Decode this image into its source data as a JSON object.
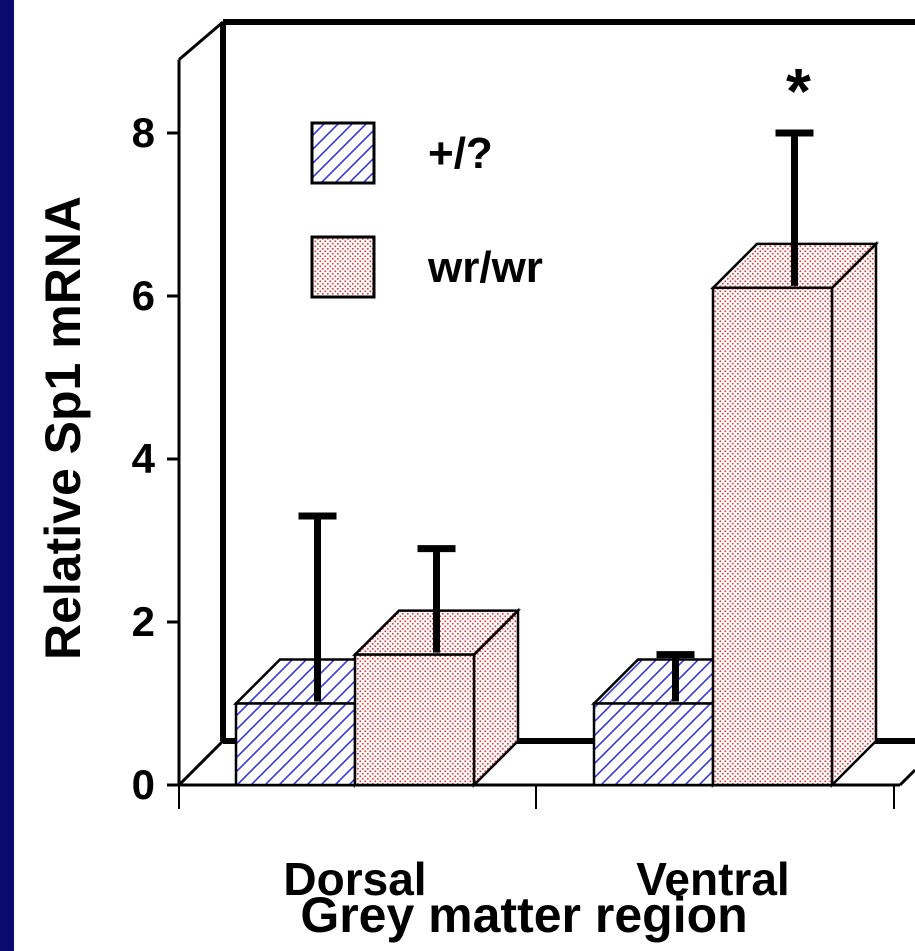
{
  "chart_data": {
    "type": "bar",
    "title": "",
    "xlabel": "Grey matter region",
    "ylabel": "Relative Sp1 mRNA",
    "categories": [
      "Dorsal",
      "Ventral"
    ],
    "series": [
      {
        "name": "+/?",
        "values": [
          1.0,
          1.0
        ],
        "error": [
          2.3,
          0.6
        ],
        "color": "#3a3ad8",
        "pattern": "hatch"
      },
      {
        "name": "wr/wr",
        "values": [
          1.6,
          6.1
        ],
        "error": [
          1.3,
          1.9
        ],
        "color": "#e05a5a",
        "pattern": "dots"
      }
    ],
    "yticks": [
      0,
      2,
      4,
      6,
      8
    ],
    "ylim": [
      0,
      8.9
    ],
    "annotations": [
      {
        "text": "*",
        "category": "Ventral",
        "series": "wr/wr"
      }
    ],
    "legend": "top-left",
    "grid": false,
    "style": "3d"
  }
}
